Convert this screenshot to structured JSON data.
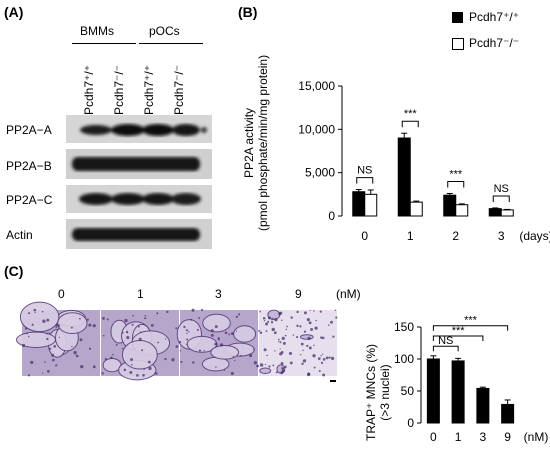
{
  "panels": {
    "a": "(A)",
    "b": "(B)",
    "c": "(C)"
  },
  "blot": {
    "groups": [
      "BMMs",
      "pOCs"
    ],
    "lanes": [
      "Pcdh7⁺/⁺",
      "Pcdh7⁻/⁻",
      "Pcdh7⁺/⁺",
      "Pcdh7⁻/⁻"
    ],
    "rows": [
      "PP2A−A",
      "PP2A−B",
      "PP2A−C",
      "Actin"
    ]
  },
  "legend": {
    "wt": "Pcdh7⁺/⁺",
    "ko": "Pcdh7⁻/⁻"
  },
  "chart_data": [
    {
      "type": "bar",
      "categories": [
        "0",
        "1",
        "2",
        "3"
      ],
      "series": [
        {
          "name": "Pcdh7⁺/⁺",
          "values": [
            2800,
            9000,
            2400,
            850
          ],
          "errors": [
            250,
            550,
            200,
            80
          ],
          "color": "#000000"
        },
        {
          "name": "Pcdh7⁻/⁻",
          "values": [
            2500,
            1600,
            1300,
            700
          ],
          "errors": [
            500,
            120,
            100,
            60
          ],
          "color": "#ffffff"
        }
      ],
      "ylabel_line1": "PP2A activity",
      "ylabel_line2": "(pmol phosphate/min/mg protein)",
      "xunit": "(days)",
      "ylim": [
        0,
        15000
      ],
      "yticks": [
        "0",
        "5,000",
        "10,000",
        "15,000"
      ],
      "annotations": [
        "NS",
        "***",
        "***",
        "NS"
      ]
    },
    {
      "type": "bar",
      "categories": [
        "0",
        "1",
        "3",
        "9"
      ],
      "values": [
        100,
        97,
        54,
        29
      ],
      "errors": [
        5,
        4,
        2,
        7
      ],
      "ylabel_line1": "TRAP⁺ MNCs (%)",
      "ylabel_line2": "(>3 nuclei)",
      "xunit": "(nM)",
      "ylim": [
        0,
        150
      ],
      "yticks": [
        "0",
        "50",
        "100",
        "150"
      ],
      "comparisons": [
        "NS",
        "***",
        "***"
      ]
    }
  ],
  "micro": {
    "labels": [
      "0",
      "1",
      "3",
      "9"
    ],
    "unit": "(nM)"
  }
}
